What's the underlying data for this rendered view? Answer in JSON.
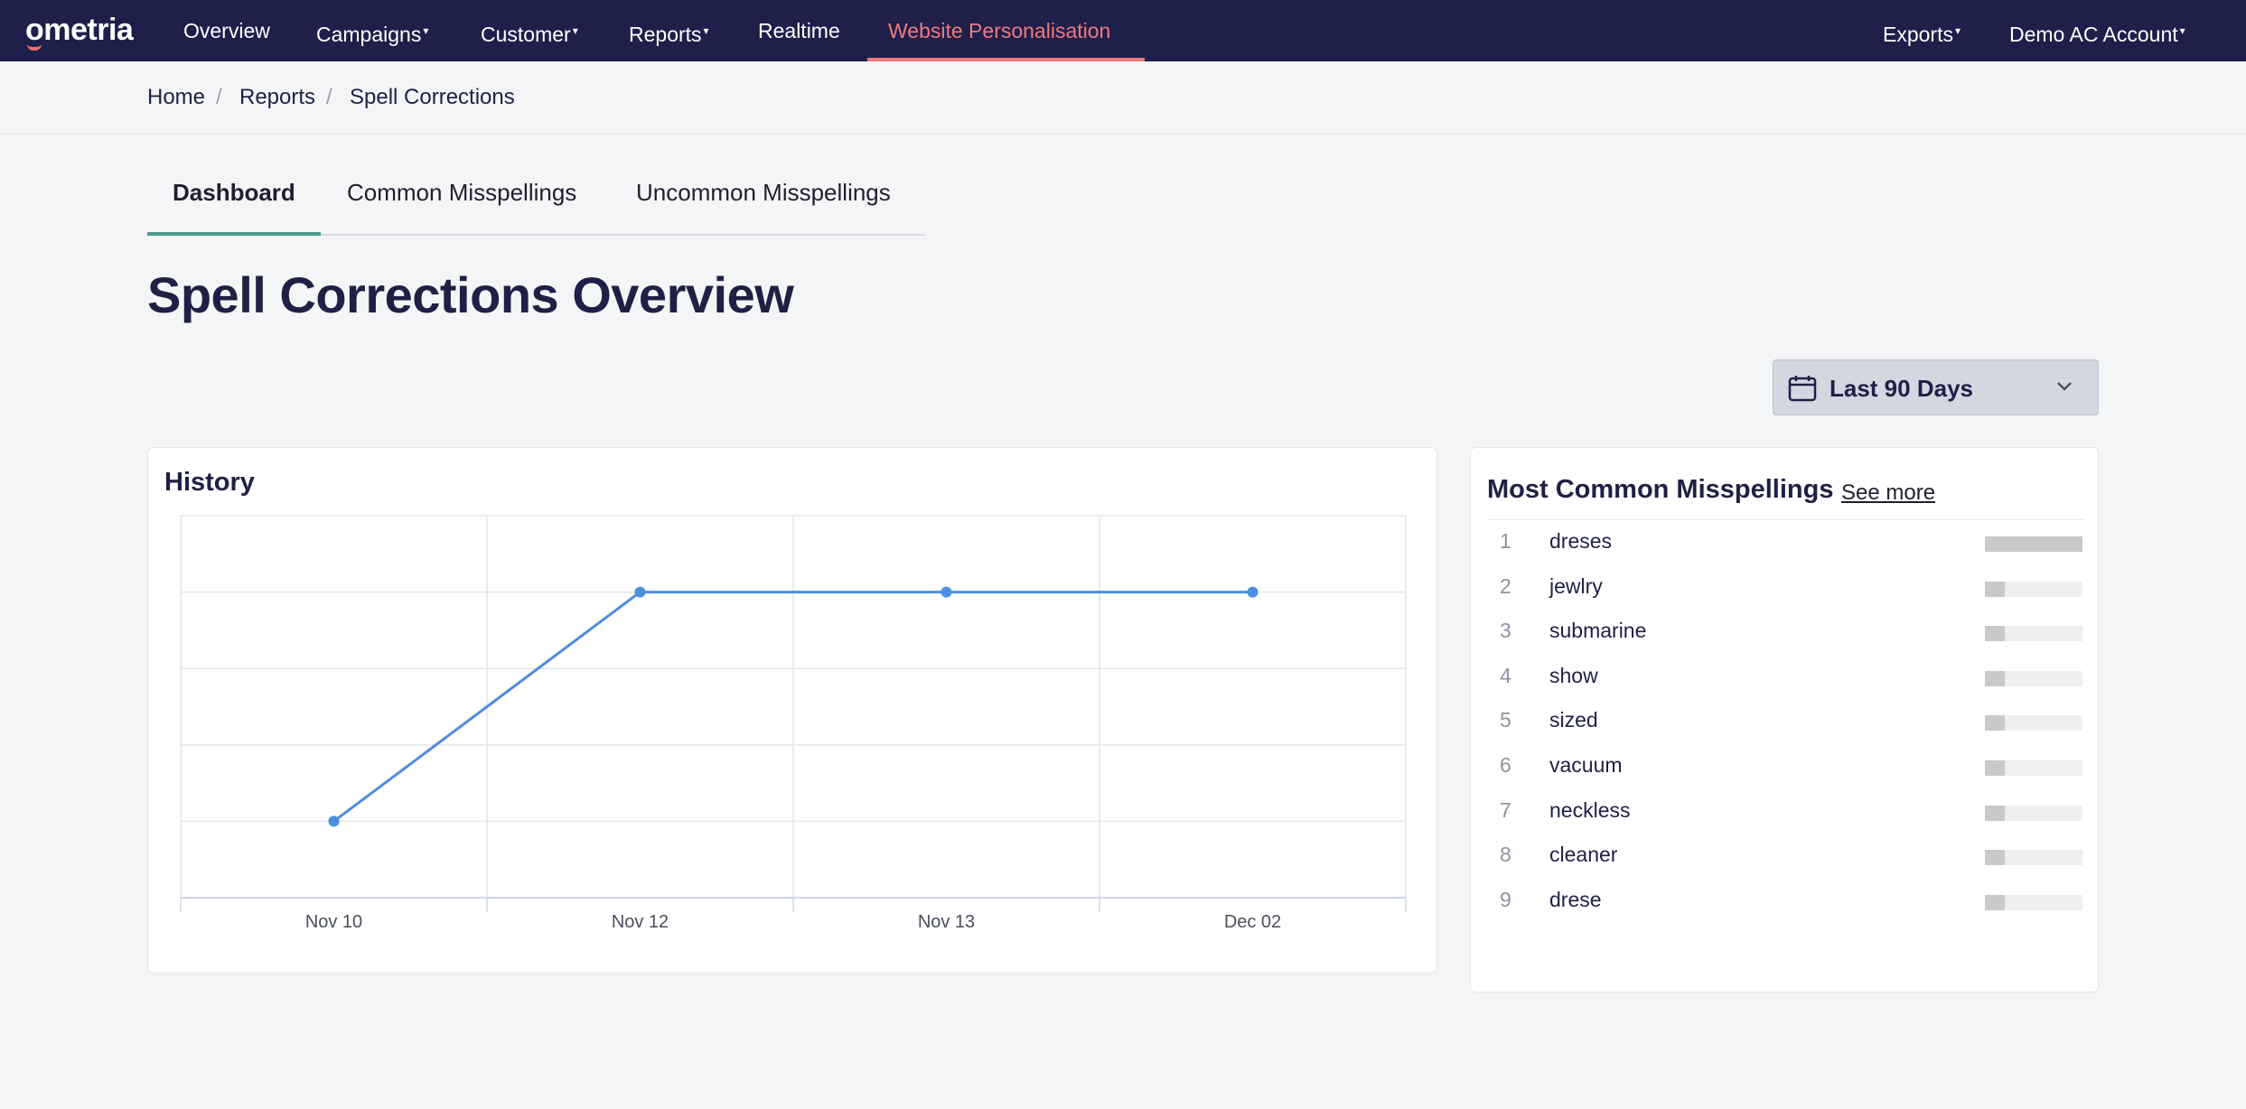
{
  "nav": {
    "logo": "ometria",
    "items": [
      {
        "label": "Overview",
        "caret": false
      },
      {
        "label": "Campaigns",
        "caret": true
      },
      {
        "label": "Customer",
        "caret": true
      },
      {
        "label": "Reports",
        "caret": true
      },
      {
        "label": "Realtime",
        "caret": false
      },
      {
        "label": "Website Personalisation",
        "caret": false,
        "active": true
      }
    ],
    "right_items": [
      {
        "label": "Exports",
        "caret": true
      },
      {
        "label": "Demo AC Account",
        "caret": true
      }
    ],
    "caret_glyph": "▾",
    "active_color": "#f07b7b"
  },
  "breadcrumb": {
    "items": [
      "Home",
      "Reports",
      "Spell Corrections"
    ],
    "separator": "/"
  },
  "tabs": [
    {
      "label": "Dashboard",
      "active": true
    },
    {
      "label": "Common Misspellings",
      "active": false
    },
    {
      "label": "Uncommon Misspellings",
      "active": false
    }
  ],
  "page_title": "Spell Corrections Overview",
  "date_range": {
    "label": "Last 90 Days",
    "icon": "calendar-icon"
  },
  "history": {
    "title": "History"
  },
  "chart_data": {
    "type": "line",
    "title": "History",
    "categories": [
      "Nov 10",
      "Nov 12",
      "Nov 13",
      "Dec 02"
    ],
    "series": [
      {
        "values": [
          1,
          4,
          4,
          4
        ]
      }
    ],
    "ylim": [
      0,
      5
    ],
    "grid": true,
    "line_color": "#4a8fe0"
  },
  "common": {
    "title": "Most Common Misspellings",
    "see_more": "See more",
    "items": [
      {
        "rank": "1",
        "word": "dreses",
        "share": 1.0
      },
      {
        "rank": "2",
        "word": "jewlry",
        "share": 0.2
      },
      {
        "rank": "3",
        "word": "submarine",
        "share": 0.2
      },
      {
        "rank": "4",
        "word": "show",
        "share": 0.2
      },
      {
        "rank": "5",
        "word": "sized",
        "share": 0.2
      },
      {
        "rank": "6",
        "word": "vacuum",
        "share": 0.2
      },
      {
        "rank": "7",
        "word": "neckless",
        "share": 0.2
      },
      {
        "rank": "8",
        "word": "cleaner",
        "share": 0.2
      },
      {
        "rank": "9",
        "word": "drese",
        "share": 0.2
      }
    ]
  }
}
